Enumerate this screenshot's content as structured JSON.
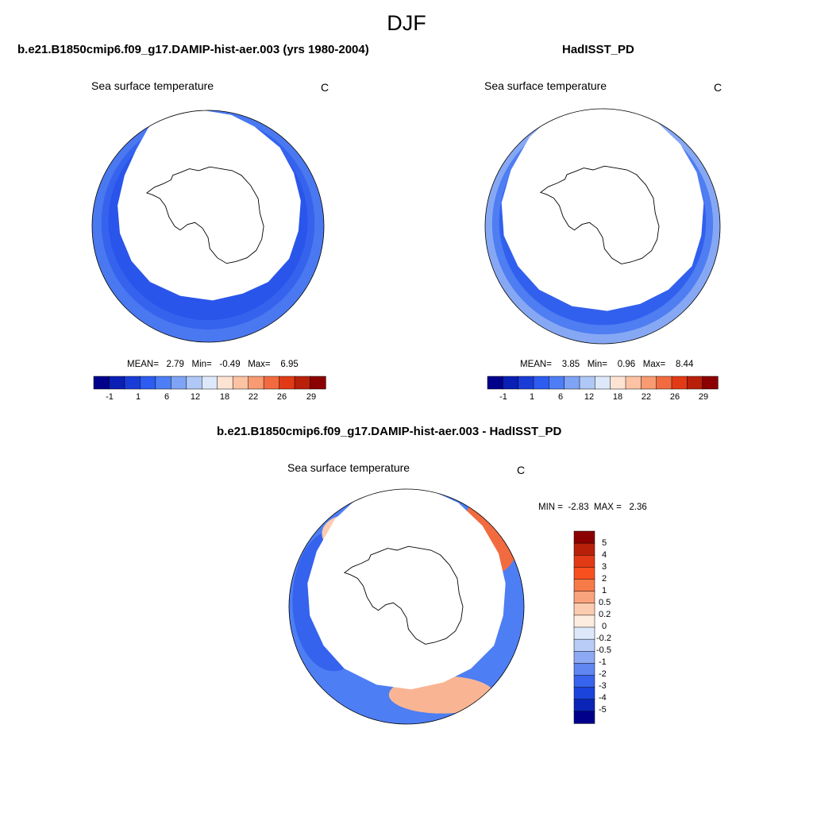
{
  "page": {
    "season": "DJF",
    "coast_color": "#000000"
  },
  "panels": [
    {
      "title": "b.e21.B1850cmip6.f09_g17.DAMIP-hist-aer.003 (yrs 1980-2004)",
      "subtitle": "Sea surface temperature",
      "units": "C",
      "stats": {
        "mean_label": "MEAN=",
        "mean": "2.79",
        "min_label": "Min=",
        "min": "-0.49",
        "max_label": "Max=",
        "max": "6.95"
      }
    },
    {
      "title": "HadISST_PD",
      "subtitle": "Sea surface temperature",
      "units": "C",
      "stats": {
        "mean_label": "MEAN=",
        "mean": "3.85",
        "min_label": "Min=",
        "min": "0.96",
        "max_label": "Max=",
        "max": "8.44"
      }
    },
    {
      "title": "b.e21.B1850cmip6.f09_g17.DAMIP-hist-aer.003 - HadISST_PD",
      "subtitle": "Sea surface temperature",
      "units": "C",
      "stats": {
        "min_label": "MIN =",
        "min": "-2.83",
        "max_label": "MAX =",
        "max": "2.36"
      }
    }
  ],
  "chart_data": [
    {
      "type": "heatmap",
      "projection": "south-polar-stereographic",
      "title": "b.e21.B1850cmip6.f09_g17.DAMIP-hist-aer.003 (yrs 1980-2004)",
      "colorbar": {
        "orientation": "horizontal",
        "tick_labels": [
          "-1",
          "1",
          "6",
          "12",
          "18",
          "22",
          "26",
          "29"
        ],
        "colors": [
          "#00008b",
          "#0a1fb4",
          "#1a3cd6",
          "#2c5cf0",
          "#4d7ef5",
          "#7fa3f5",
          "#b0c8f5",
          "#dde9fb",
          "#fde4d2",
          "#fbc3a3",
          "#f99b72",
          "#f26b40",
          "#e23a16",
          "#b9200a",
          "#8b0000"
        ]
      },
      "stats": {
        "mean": 2.79,
        "min": -0.49,
        "max": 6.95
      }
    },
    {
      "type": "heatmap",
      "projection": "south-polar-stereographic",
      "title": "HadISST_PD",
      "colorbar": {
        "orientation": "horizontal",
        "tick_labels": [
          "-1",
          "1",
          "6",
          "12",
          "18",
          "22",
          "26",
          "29"
        ],
        "colors": [
          "#00008b",
          "#0a1fb4",
          "#1a3cd6",
          "#2c5cf0",
          "#4d7ef5",
          "#7fa3f5",
          "#b0c8f5",
          "#dde9fb",
          "#fde4d2",
          "#fbc3a3",
          "#f99b72",
          "#f26b40",
          "#e23a16",
          "#b9200a",
          "#8b0000"
        ]
      },
      "stats": {
        "mean": 3.85,
        "min": 0.96,
        "max": 8.44
      }
    },
    {
      "type": "heatmap",
      "projection": "south-polar-stereographic",
      "title": "b.e21.B1850cmip6.f09_g17.DAMIP-hist-aer.003 - HadISST_PD",
      "colorbar": {
        "orientation": "vertical",
        "tick_labels": [
          "5",
          "4",
          "3",
          "2",
          "1",
          "0.5",
          "0.2",
          "0",
          "-0.2",
          "-0.5",
          "-1",
          "-2",
          "-3",
          "-4",
          "-5"
        ],
        "colors": [
          "#8b0000",
          "#b9200a",
          "#e23a16",
          "#f9501f",
          "#f77b49",
          "#f9a37d",
          "#fcccb0",
          "#fdece0",
          "#dde9fb",
          "#b8ccf7",
          "#8ea9f3",
          "#5f86f1",
          "#3863ec",
          "#1a44dc",
          "#0a24b8",
          "#00008b"
        ]
      },
      "stats": {
        "min": -2.83,
        "max": 2.36
      }
    }
  ]
}
